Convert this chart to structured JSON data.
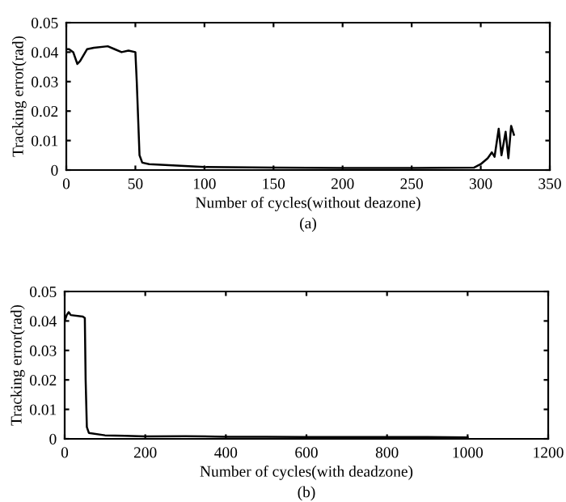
{
  "chart_data": [
    {
      "type": "line",
      "xlabel": "Number of cycles(without deazone)",
      "ylabel": "Tracking error(rad)",
      "annotations": [
        "(a)"
      ],
      "xlim": [
        0,
        350
      ],
      "xticks": [
        0,
        50,
        100,
        150,
        200,
        250,
        300,
        350
      ],
      "ylim": [
        0,
        0.05
      ],
      "yticks": [
        0,
        0.01,
        0.02,
        0.03,
        0.04,
        0.05
      ],
      "grid": false,
      "legend": false,
      "series": [
        {
          "color": "#000000",
          "x": [
            0,
            2,
            5,
            8,
            10,
            15,
            20,
            30,
            35,
            40,
            45,
            50,
            51,
            53,
            55,
            60,
            80,
            100,
            150,
            200,
            250,
            295,
            300,
            305,
            308,
            310,
            313,
            315,
            318,
            320,
            322,
            324
          ],
          "values": [
            0.041,
            0.041,
            0.04,
            0.036,
            0.037,
            0.041,
            0.0415,
            0.042,
            0.041,
            0.04,
            0.0405,
            0.04,
            0.03,
            0.005,
            0.0025,
            0.002,
            0.0015,
            0.001,
            0.0008,
            0.0007,
            0.0007,
            0.0008,
            0.002,
            0.004,
            0.006,
            0.0045,
            0.014,
            0.005,
            0.013,
            0.004,
            0.015,
            0.012
          ]
        }
      ]
    },
    {
      "type": "line",
      "xlabel": "Number of cycles(with deadzone)",
      "ylabel": "Tracking error(rad)",
      "annotations": [
        "(b)"
      ],
      "xlim": [
        0,
        1200
      ],
      "xticks": [
        0,
        200,
        400,
        600,
        800,
        1000,
        1200
      ],
      "ylim": [
        0,
        0.05
      ],
      "yticks": [
        0,
        0.01,
        0.02,
        0.03,
        0.04,
        0.05
      ],
      "grid": false,
      "legend": false,
      "series": [
        {
          "color": "#000000",
          "x": [
            0,
            5,
            10,
            15,
            45,
            50,
            52,
            55,
            60,
            100,
            150,
            200,
            300,
            400,
            500,
            600,
            700,
            800,
            900,
            1000
          ],
          "values": [
            0.04,
            0.042,
            0.043,
            0.042,
            0.0415,
            0.041,
            0.02,
            0.004,
            0.002,
            0.0012,
            0.001,
            0.0008,
            0.0009,
            0.0007,
            0.0007,
            0.0006,
            0.0006,
            0.0006,
            0.0006,
            0.0005
          ]
        }
      ]
    }
  ]
}
